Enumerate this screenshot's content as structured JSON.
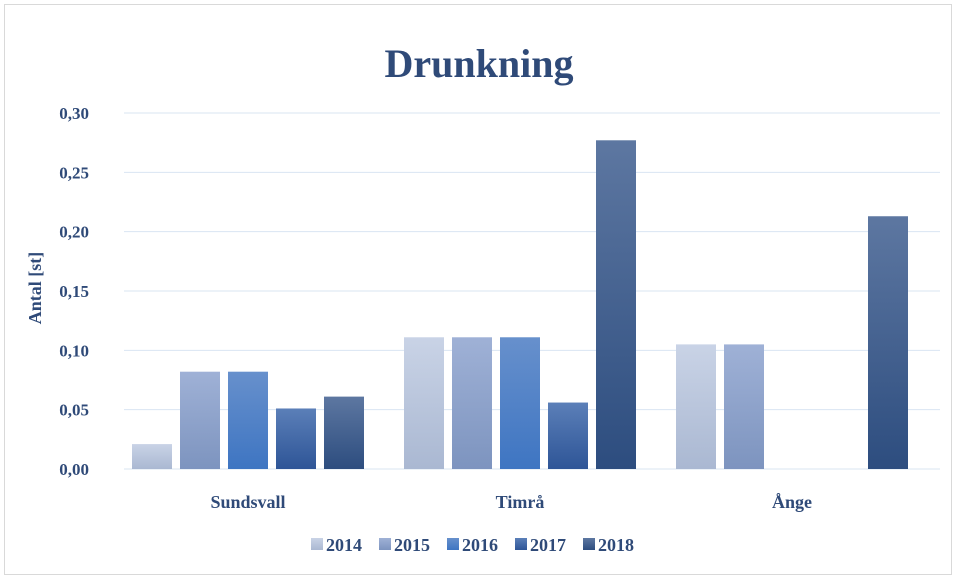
{
  "chart_data": {
    "type": "bar",
    "title": "Drunkning",
    "ylabel": "Antal [st]",
    "xlabel": "",
    "categories": [
      "Sundsvall",
      "Timrå",
      "Ånge"
    ],
    "ylim": [
      0,
      0.3
    ],
    "yticks": [
      "0,00",
      "0,05",
      "0,10",
      "0,15",
      "0,20",
      "0,25",
      "0,30"
    ],
    "yticks_values": [
      0,
      0.05,
      0.1,
      0.15,
      0.2,
      0.25,
      0.3
    ],
    "grid": true,
    "legend_position": "bottom",
    "series": [
      {
        "name": "2014",
        "values": [
          0.021,
          0.111,
          0.105
        ],
        "color_top": "#c9d3e6",
        "color_bottom": "#aab8d2"
      },
      {
        "name": "2015",
        "values": [
          0.082,
          0.111,
          0.105
        ],
        "color_top": "#9fb1d6",
        "color_bottom": "#7d94bf"
      },
      {
        "name": "2016",
        "values": [
          0.082,
          0.111,
          0.0
        ],
        "color_top": "#6790cc",
        "color_bottom": "#3e75c2"
      },
      {
        "name": "2017",
        "values": [
          0.051,
          0.056,
          0.0
        ],
        "color_top": "#5b7fb8",
        "color_bottom": "#2e5597"
      },
      {
        "name": "2018",
        "values": [
          0.061,
          0.277,
          0.213
        ],
        "color_top": "#5d77a1",
        "color_bottom": "#2d4d7f"
      }
    ],
    "gridline_color": "#d9e4f2",
    "text_color": "#2f4a78"
  }
}
